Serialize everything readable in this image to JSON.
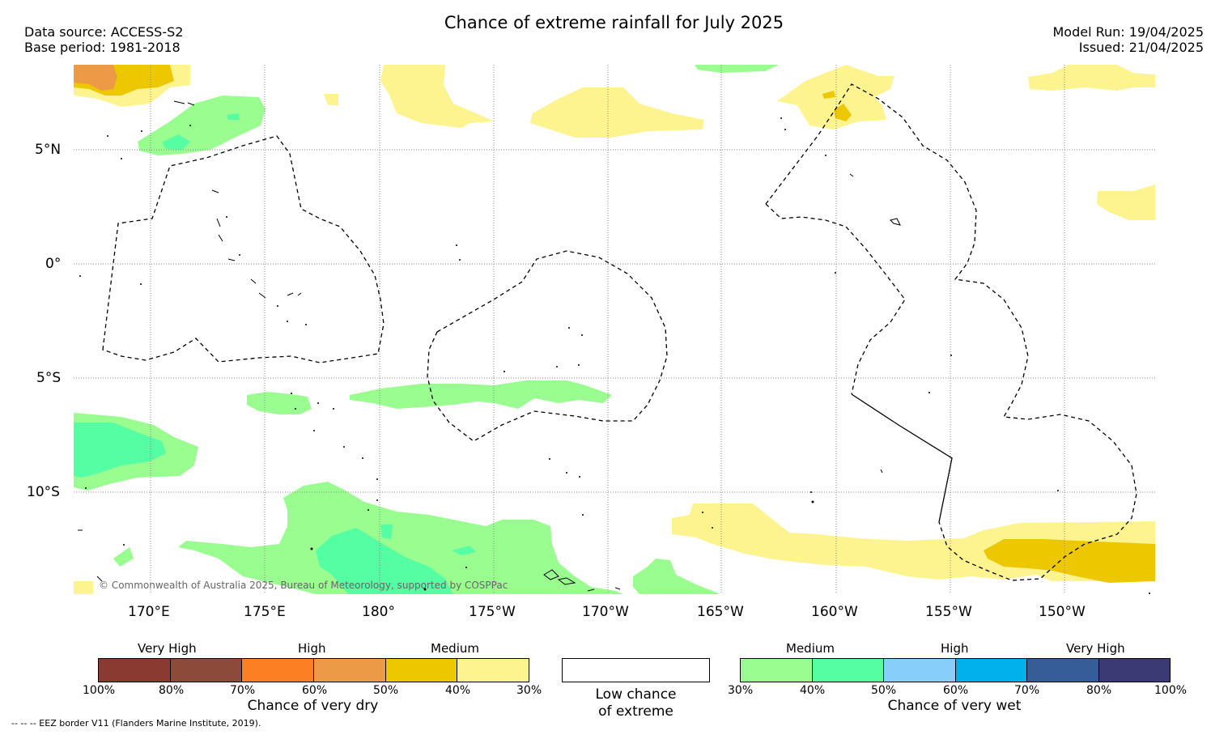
{
  "title": "Chance of extreme rainfall for July 2025",
  "meta": {
    "data_source": "Data source: ACCESS-S2",
    "base_period": "Base period: 1981-2018",
    "model_run": "Model Run: 19/04/2025",
    "issued": "Issued: 21/04/2025"
  },
  "map": {
    "lat_ticks": [
      "5°N",
      "0°",
      "5°S",
      "10°S"
    ],
    "lon_ticks": [
      "170°E",
      "175°E",
      "180°",
      "175°W",
      "170°W",
      "165°W",
      "160°W",
      "155°W",
      "150°W"
    ],
    "copyright": "© Commonwealth of Australia 2025, Bureau of Meteorology, supported by COSPPac"
  },
  "legend": {
    "dry": {
      "title": "Chance of very dry",
      "categories": [
        "Very High",
        "High",
        "Medium"
      ],
      "ticks": [
        "100%",
        "80%",
        "70%",
        "60%",
        "50%",
        "40%",
        "30%"
      ],
      "colors": [
        "#8b3a32",
        "#8b4a3a",
        "#fd7f23",
        "#ec9a45",
        "#edc700",
        "#fdf490"
      ]
    },
    "neutral": {
      "title_line1": "Low chance",
      "title_line2": "of extreme"
    },
    "wet": {
      "title": "Chance of very wet",
      "categories": [
        "Medium",
        "High",
        "Very High"
      ],
      "ticks": [
        "30%",
        "40%",
        "50%",
        "60%",
        "70%",
        "80%",
        "100%"
      ],
      "colors": [
        "#9afd90",
        "#55fda3",
        "#87cefb",
        "#00b1eb",
        "#365d97",
        "#3b3a74"
      ]
    }
  },
  "footer": "--  --  -- EEZ border V11 (Flanders Marine Institute, 2019)."
}
